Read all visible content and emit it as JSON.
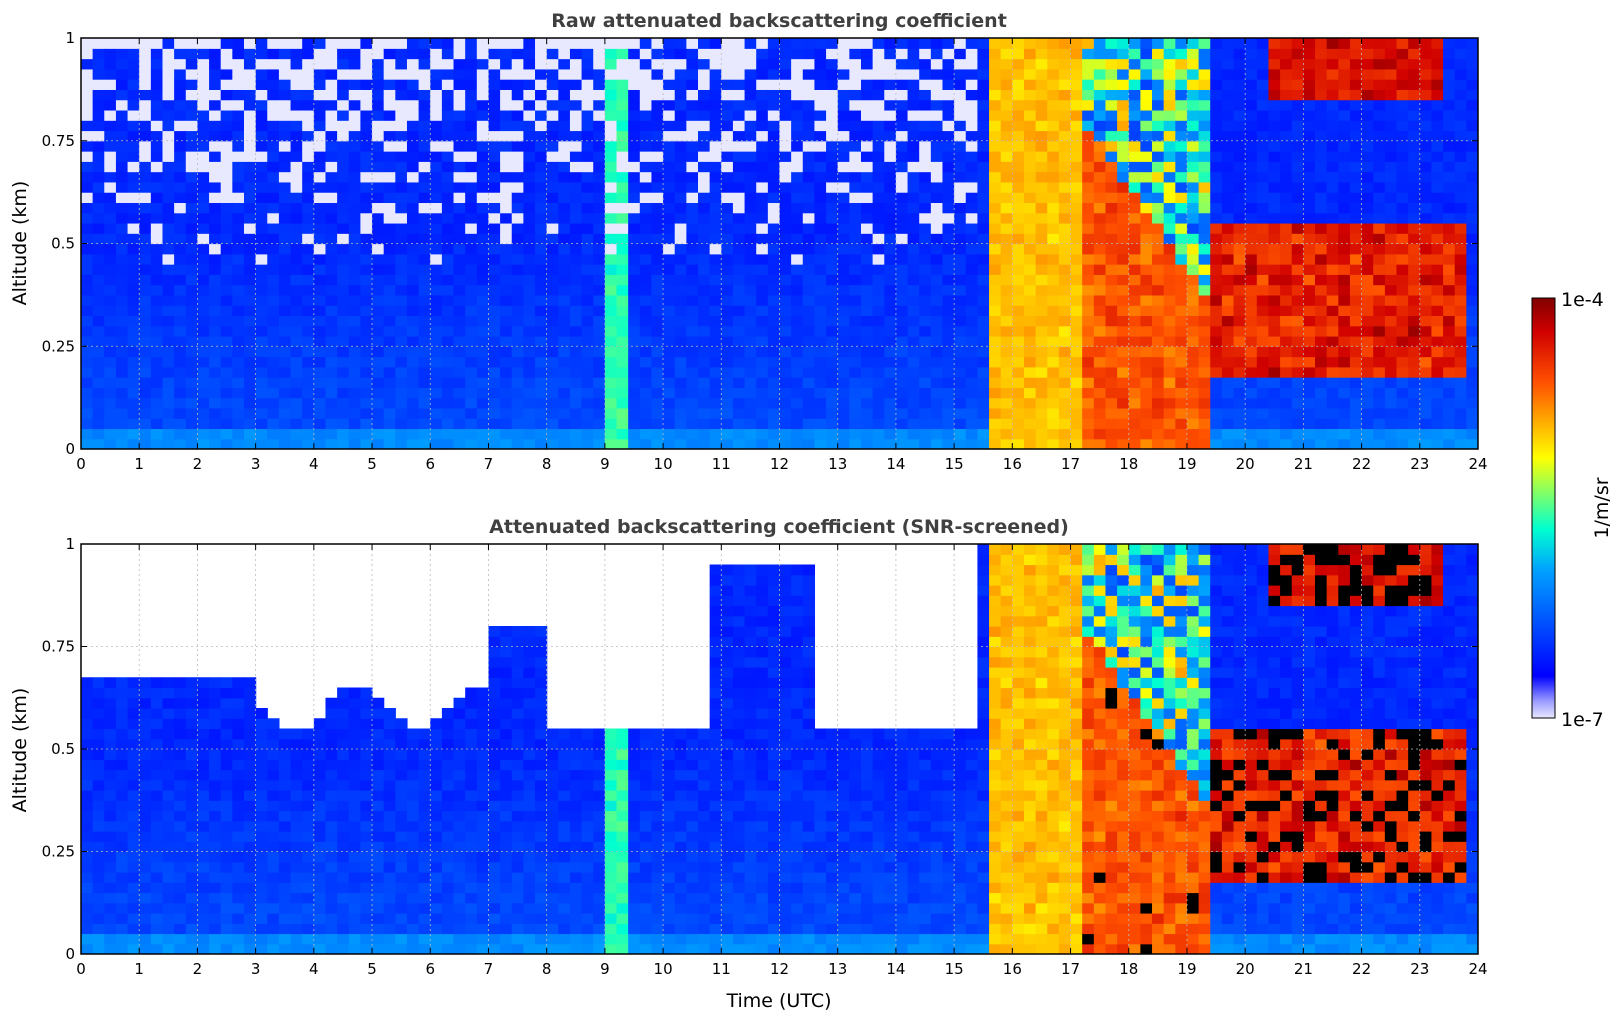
{
  "chart_data": [
    {
      "type": "heatmap",
      "title": "Raw attenuated backscattering coefficient",
      "xlabel": "",
      "ylabel": "Altitude (km)",
      "xlim": [
        0,
        24
      ],
      "ylim": [
        0,
        1
      ],
      "x_ticks": [
        "0",
        "1",
        "2",
        "3",
        "4",
        "5",
        "6",
        "7",
        "8",
        "9",
        "10",
        "11",
        "12",
        "13",
        "14",
        "15",
        "16",
        "17",
        "18",
        "19",
        "20",
        "21",
        "22",
        "23",
        "24"
      ],
      "y_ticks": [
        "0",
        "0.25",
        "0.5",
        "0.75",
        "1"
      ],
      "grid": true,
      "screened": false
    },
    {
      "type": "heatmap",
      "title": "Attenuated backscattering coefficient (SNR-screened)",
      "xlabel": "Time (UTC)",
      "ylabel": "Altitude (km)",
      "xlim": [
        0,
        24
      ],
      "ylim": [
        0,
        1
      ],
      "x_ticks": [
        "0",
        "1",
        "2",
        "3",
        "4",
        "5",
        "6",
        "7",
        "8",
        "9",
        "10",
        "11",
        "12",
        "13",
        "14",
        "15",
        "16",
        "17",
        "18",
        "19",
        "20",
        "21",
        "22",
        "23",
        "24"
      ],
      "y_ticks": [
        "0",
        "0.25",
        "0.5",
        "0.75",
        "1"
      ],
      "grid": true,
      "screened": true
    }
  ],
  "colorbar": {
    "label": "1/m/sr",
    "max_label": "1e-4",
    "min_label": "1e-7",
    "scale": "log",
    "colormap": "jet"
  }
}
